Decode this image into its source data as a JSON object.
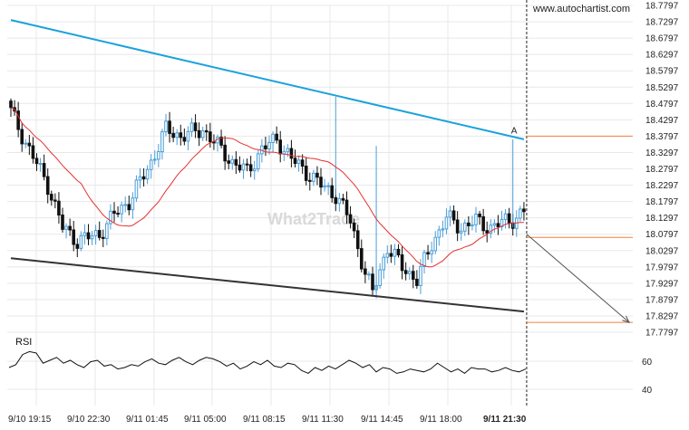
{
  "source_label": "www.autochartist.com",
  "watermark_text": "What2Trade",
  "chart_data": {
    "type": "candlestick",
    "ylim": [
      17.7797,
      18.7797
    ],
    "yticks": [
      18.7797,
      18.7297,
      18.6797,
      18.6297,
      18.5797,
      18.5297,
      18.4797,
      18.4297,
      18.3797,
      18.3297,
      18.2797,
      18.2297,
      18.1797,
      18.1297,
      18.0797,
      18.0297,
      17.9797,
      17.9297,
      17.8797,
      17.8297,
      17.7797
    ],
    "yticks_labels": [
      "18.7797",
      "18.7297",
      "18.6797",
      "18.6297",
      "18.5797",
      "18.5297",
      "18.4797",
      "18.4297",
      "18.3797",
      "18.3297",
      "18.2797",
      "18.2297",
      "18.1797",
      "18.1297",
      "18.0797",
      "18.0297",
      "17.9797",
      "17.9297",
      "17.8797",
      "17.8297",
      "17.7797"
    ],
    "xtick_labels": [
      "9/10 19:15",
      "9/10 22:30",
      "9/11 01:45",
      "9/11 05:00",
      "9/11 08:15",
      "9/11 11:30",
      "9/11 14:45",
      "9/11 18:00",
      "9/11 21:30"
    ],
    "n_candles": 140,
    "last_candle_index": 139,
    "price_path": [
      [
        0,
        18.455
      ],
      [
        4,
        18.36
      ],
      [
        10,
        18.23
      ],
      [
        14,
        18.1
      ],
      [
        18,
        18.06
      ],
      [
        24,
        18.08
      ],
      [
        28,
        18.14
      ],
      [
        32,
        18.18
      ],
      [
        38,
        18.3
      ],
      [
        42,
        18.4
      ],
      [
        46,
        18.38
      ],
      [
        52,
        18.4
      ],
      [
        56,
        18.35
      ],
      [
        60,
        18.3
      ],
      [
        64,
        18.27
      ],
      [
        68,
        18.34
      ],
      [
        72,
        18.37
      ],
      [
        76,
        18.31
      ],
      [
        80,
        18.27
      ],
      [
        84,
        18.23
      ],
      [
        88,
        18.2
      ],
      [
        92,
        18.12
      ],
      [
        96,
        17.96
      ],
      [
        98,
        17.9
      ],
      [
        102,
        18.04
      ],
      [
        106,
        17.98
      ],
      [
        110,
        17.94
      ],
      [
        114,
        18.05
      ],
      [
        118,
        18.13
      ],
      [
        122,
        18.1
      ],
      [
        126,
        18.12
      ],
      [
        130,
        18.1
      ],
      [
        134,
        18.12
      ],
      [
        137,
        18.13
      ],
      [
        139,
        18.15
      ]
    ],
    "series": [
      {
        "name": "",
        "kind": "candles",
        "up_color": "#4a9ed8",
        "down_color": "#111111"
      },
      {
        "name": "",
        "kind": "moving_average",
        "color": "#e53030"
      }
    ],
    "channel": {
      "upper": {
        "start": [
          0,
          18.735
        ],
        "end": [
          139,
          18.37
        ],
        "color": "#1aa2dc"
      },
      "lower": {
        "start": [
          0,
          18.006
        ],
        "end": [
          139,
          17.843
        ],
        "color": "#333333"
      }
    },
    "pattern_point": {
      "label": "A",
      "x": 136,
      "y": 18.3797,
      "color": "#f08040"
    },
    "horizontal_levels": [
      {
        "value": 18.3797,
        "color": "#f08040"
      },
      {
        "value": 18.0697,
        "color": "#f08040"
      },
      {
        "value": 17.8097,
        "color": "#f08040"
      }
    ],
    "forecast_arrow": {
      "from": [
        139,
        18.0797
      ],
      "to": [
        170,
        17.8097
      ],
      "color": "#555555"
    },
    "current_time_index": 139,
    "rsi": {
      "label": "RSI",
      "ylim": [
        30,
        70
      ],
      "yticks": [
        60,
        40
      ],
      "values": [
        55,
        57,
        64,
        66,
        65,
        58,
        60,
        62,
        58,
        60,
        57,
        55,
        59,
        60,
        56,
        57,
        54,
        55,
        57,
        56,
        59,
        61,
        58,
        57,
        60,
        62,
        59,
        57,
        60,
        62,
        61,
        59,
        56,
        58,
        54,
        56,
        59,
        57,
        60,
        56,
        55,
        58,
        57,
        53,
        51,
        55,
        53,
        56,
        54,
        57,
        60,
        58,
        55,
        57,
        52,
        55,
        54,
        51,
        52,
        54,
        53,
        52,
        54,
        58,
        55,
        52,
        54,
        51,
        55,
        54,
        54,
        52,
        53,
        55,
        53,
        52,
        54
      ],
      "color": "#111111"
    }
  }
}
